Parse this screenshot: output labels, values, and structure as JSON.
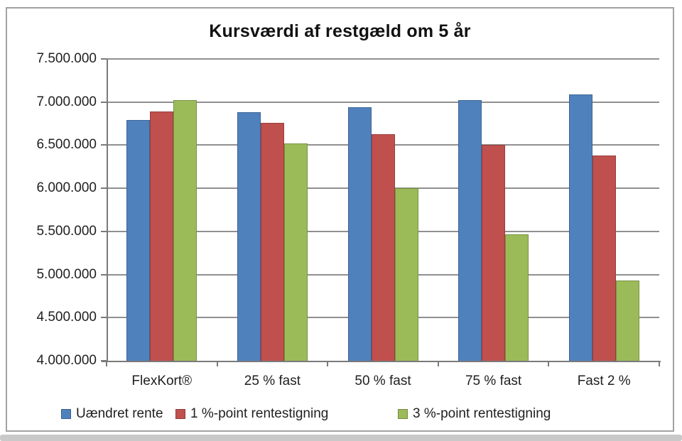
{
  "chart_data": {
    "type": "bar",
    "title": "Kursværdi af restgæld om 5 år",
    "categories": [
      "FlexKort®",
      "25 % fast",
      "50 % fast",
      "75 % fast",
      "Fast 2 %"
    ],
    "series": [
      {
        "name": "Uændret rente",
        "color": "#4F81BD",
        "values": [
          6790000,
          6880000,
          6940000,
          7020000,
          7090000
        ]
      },
      {
        "name": "1 %-point rentestigning",
        "color": "#C0504D",
        "values": [
          6890000,
          6760000,
          6630000,
          6500000,
          6380000
        ]
      },
      {
        "name": "3 %-point rentestigning",
        "color": "#9BBB59",
        "values": [
          7020000,
          6520000,
          6000000,
          5470000,
          4930000
        ]
      }
    ],
    "y_axis": {
      "min": 4000000,
      "max": 7500000,
      "step": 500000,
      "tick_labels_top_to_bottom": [
        "7.500.000",
        "7.000.000",
        "6.500.000",
        "6.000.000",
        "5.500.000",
        "5.000.000",
        "4.500.000",
        "4.000.000"
      ]
    },
    "xlabel": "",
    "ylabel": "",
    "grid": true,
    "legend_position": "bottom",
    "colors": {
      "gridline": "#909090",
      "axis": "#7a7a7a",
      "text": "#1f1f1f",
      "frame_border": "#a2a2a2"
    }
  }
}
